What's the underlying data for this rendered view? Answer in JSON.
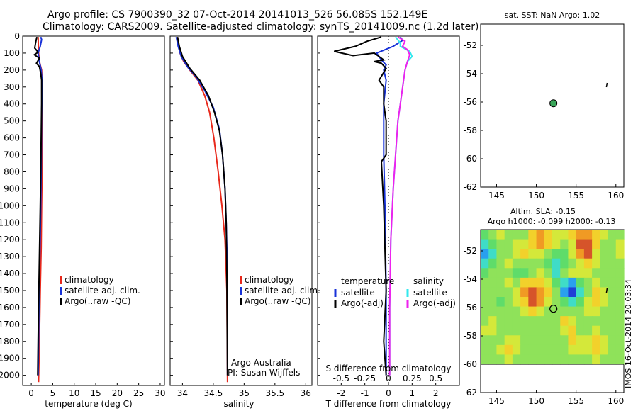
{
  "header": {
    "line1": "Argo profile: CS 7900390_32 07-Oct-2014 20141013_526 56.085S 152.149E",
    "line2": "Climatology: CARS2009. Satellite-adjusted climatology: synTS_20141009.nc (1.2d later)"
  },
  "colors": {
    "climatology": "#e8281b",
    "satellite": "#1832d8",
    "argo": "#000000",
    "sal_satellite": "#33e8ee",
    "sal_argo": "#ee22ee"
  },
  "chart_data": [
    {
      "id": "temperature",
      "type": "line",
      "xlabel": "temperature (deg C)",
      "ylabel": "",
      "xlim": [
        -2,
        31
      ],
      "ylim": [
        2060,
        0
      ],
      "x_ticks": [
        "0",
        "5",
        "10",
        "15",
        "20",
        "25",
        "30"
      ],
      "y_ticks": [
        "0",
        "100",
        "200",
        "300",
        "400",
        "500",
        "600",
        "700",
        "800",
        "900",
        "1000",
        "1100",
        "1200",
        "1300",
        "1400",
        "1500",
        "1600",
        "1700",
        "1800",
        "1900",
        "2000"
      ],
      "legend": [
        "climatology",
        "satellite-adj. clim.",
        "Argo(..raw -QC)"
      ],
      "series": [
        {
          "name": "climatology",
          "color": "#e8281b",
          "points": [
            [
              1.6,
              5
            ],
            [
              1.7,
              100
            ],
            [
              2.0,
              160
            ],
            [
              2.4,
              200
            ],
            [
              2.5,
              260
            ],
            [
              2.5,
              400
            ],
            [
              2.5,
              600
            ],
            [
              2.5,
              800
            ],
            [
              2.4,
              1000
            ],
            [
              2.3,
              1250
            ],
            [
              2.1,
              1500
            ],
            [
              1.9,
              1800
            ],
            [
              1.7,
              2040
            ]
          ]
        },
        {
          "name": "satellite-adj. clim.",
          "color": "#1832d8",
          "points": [
            [
              2.2,
              5
            ],
            [
              2.4,
              20
            ],
            [
              2.1,
              60
            ],
            [
              1.6,
              100
            ],
            [
              1.9,
              150
            ],
            [
              2.3,
              200
            ],
            [
              2.5,
              260
            ],
            [
              2.4,
              500
            ],
            [
              2.3,
              800
            ],
            [
              2.2,
              1000
            ],
            [
              2.0,
              1300
            ],
            [
              1.8,
              1600
            ],
            [
              1.6,
              2000
            ]
          ]
        },
        {
          "name": "Argo(..raw -QC)",
          "color": "#000000",
          "points": [
            [
              1.3,
              5
            ],
            [
              1.0,
              40
            ],
            [
              0.8,
              70
            ],
            [
              1.6,
              95
            ],
            [
              0.7,
              110
            ],
            [
              1.9,
              130
            ],
            [
              1.2,
              160
            ],
            [
              1.9,
              180
            ],
            [
              2.2,
              220
            ],
            [
              2.4,
              260
            ],
            [
              2.4,
              400
            ],
            [
              2.3,
              600
            ],
            [
              2.2,
              800
            ],
            [
              2.1,
              1000
            ],
            [
              1.9,
              1300
            ],
            [
              1.7,
              1600
            ],
            [
              1.5,
              2000
            ]
          ]
        }
      ]
    },
    {
      "id": "salinity",
      "type": "line",
      "xlabel": "salinity",
      "ylabel": "",
      "xlim": [
        33.8,
        36.1
      ],
      "ylim": [
        2060,
        0
      ],
      "x_ticks": [
        "34",
        "34.5",
        "35",
        "35.5",
        "36"
      ],
      "legend": [
        "climatology",
        "satellite-adj. clim.",
        "Argo(..raw -QC)"
      ],
      "annotations": [
        "Argo Australia",
        "PI: Susan Wijffels"
      ],
      "series": [
        {
          "name": "climatology",
          "color": "#e8281b",
          "points": [
            [
              33.92,
              5
            ],
            [
              33.96,
              100
            ],
            [
              34.02,
              150
            ],
            [
              34.12,
              200
            ],
            [
              34.25,
              260
            ],
            [
              34.36,
              350
            ],
            [
              34.44,
              450
            ],
            [
              34.51,
              600
            ],
            [
              34.58,
              800
            ],
            [
              34.64,
              1000
            ],
            [
              34.69,
              1200
            ],
            [
              34.72,
              1500
            ],
            [
              34.73,
              2040
            ]
          ]
        },
        {
          "name": "satellite-adj. clim.",
          "color": "#1832d8",
          "points": [
            [
              33.9,
              5
            ],
            [
              33.93,
              60
            ],
            [
              33.98,
              120
            ],
            [
              34.08,
              180
            ],
            [
              34.22,
              240
            ],
            [
              34.36,
              320
            ],
            [
              34.5,
              420
            ],
            [
              34.6,
              550
            ],
            [
              34.65,
              700
            ],
            [
              34.69,
              900
            ],
            [
              34.71,
              1100
            ],
            [
              34.73,
              1400
            ],
            [
              34.73,
              2000
            ]
          ]
        },
        {
          "name": "Argo(..raw -QC)",
          "color": "#000000",
          "points": [
            [
              33.92,
              5
            ],
            [
              33.95,
              60
            ],
            [
              34.0,
              120
            ],
            [
              34.12,
              190
            ],
            [
              34.28,
              260
            ],
            [
              34.42,
              350
            ],
            [
              34.52,
              450
            ],
            [
              34.6,
              560
            ],
            [
              34.65,
              700
            ],
            [
              34.69,
              900
            ],
            [
              34.71,
              1100
            ],
            [
              34.72,
              1400
            ],
            [
              34.73,
              2000
            ]
          ]
        }
      ]
    },
    {
      "id": "differences",
      "type": "line",
      "xlabel": "T difference from climatology",
      "xlabel_top": "S difference from climatology",
      "ylabel": "",
      "xlim": [
        -3,
        3
      ],
      "ylim": [
        2060,
        0
      ],
      "x_ticks_bottom": [
        "-2",
        "-1",
        "0",
        "1",
        "2"
      ],
      "x_ticks_top": [
        "-0.5",
        "-0.25",
        "0",
        "0.25",
        "0.5"
      ],
      "legend_titles": [
        "temperature",
        "salinity"
      ],
      "legend": [
        "satellite",
        "Argo(-adj)",
        "satellite",
        "Argo(-adj)"
      ],
      "series": [
        {
          "name": "temperature satellite",
          "color": "#1832d8",
          "points": [
            [
              0.5,
              5
            ],
            [
              0.6,
              25
            ],
            [
              0.2,
              60
            ],
            [
              -0.5,
              100
            ],
            [
              -0.3,
              140
            ],
            [
              -0.1,
              170
            ],
            [
              -0.2,
              200
            ],
            [
              -0.1,
              260
            ],
            [
              -0.2,
              400
            ],
            [
              -0.2,
              700
            ],
            [
              -0.15,
              1000
            ],
            [
              -0.1,
              1500
            ],
            [
              -0.1,
              2000
            ]
          ]
        },
        {
          "name": "temperature Argo(-adj)",
          "color": "#000000",
          "points": [
            [
              -0.3,
              5
            ],
            [
              -0.9,
              30
            ],
            [
              -1.4,
              60
            ],
            [
              -2.3,
              90
            ],
            [
              -1.5,
              115
            ],
            [
              -0.6,
              100
            ],
            [
              -0.2,
              140
            ],
            [
              -0.6,
              150
            ],
            [
              -0.3,
              160
            ],
            [
              -0.1,
              190
            ],
            [
              -0.4,
              260
            ],
            [
              -0.2,
              300
            ],
            [
              -0.2,
              400
            ],
            [
              -0.1,
              500
            ],
            [
              -0.1,
              700
            ],
            [
              -0.3,
              740
            ],
            [
              -0.2,
              1000
            ],
            [
              -0.1,
              1500
            ],
            [
              -0.2,
              1800
            ],
            [
              -0.1,
              2000
            ]
          ]
        },
        {
          "name": "salinity satellite",
          "color": "#33e8ee",
          "points": [
            [
              0.3,
              5
            ],
            [
              0.5,
              40
            ],
            [
              0.5,
              60
            ],
            [
              0.9,
              90
            ],
            [
              1.0,
              120
            ],
            [
              0.8,
              150
            ],
            [
              0.7,
              200
            ],
            [
              0.6,
              300
            ],
            [
              0.5,
              400
            ],
            [
              0.4,
              500
            ],
            [
              0.3,
              700
            ],
            [
              0.2,
              900
            ],
            [
              0.1,
              1200
            ],
            [
              0.05,
              1600
            ],
            [
              0.05,
              2000
            ]
          ]
        },
        {
          "name": "salinity Argo(-adj)",
          "color": "#ee22ee",
          "points": [
            [
              0.4,
              5
            ],
            [
              0.7,
              30
            ],
            [
              0.6,
              60
            ],
            [
              0.8,
              80
            ],
            [
              0.9,
              110
            ],
            [
              0.8,
              150
            ],
            [
              0.7,
              200
            ],
            [
              0.6,
              300
            ],
            [
              0.5,
              400
            ],
            [
              0.4,
              500
            ],
            [
              0.3,
              700
            ],
            [
              0.2,
              900
            ],
            [
              0.1,
              1200
            ],
            [
              0.05,
              1600
            ],
            [
              0.05,
              2000
            ]
          ]
        }
      ]
    },
    {
      "id": "sst-map",
      "type": "scatter",
      "title": "sat. SST: NaN Argo: 1.02",
      "xlim": [
        143,
        161
      ],
      "ylim": [
        -62,
        -50.5
      ],
      "x_ticks": [
        "145",
        "150",
        "155",
        "160"
      ],
      "y_ticks": [
        "-52",
        "-54",
        "-56",
        "-58",
        "-60",
        "-62"
      ],
      "float": [
        152.149,
        -56.085
      ],
      "float_color": "#3aa65a",
      "track_marks": [
        [
          158.9,
          -54.8
        ]
      ]
    },
    {
      "id": "sla-map",
      "type": "heatmap",
      "title_line1": "Altim. SLA: -0.15",
      "title_line2": "Argo h1000: -0.099 h2000: -0.13",
      "credit": "IMOS 16-Oct-2014 20:03:34",
      "xlim": [
        143,
        161
      ],
      "ylim": [
        -62,
        -50.5
      ],
      "x_ticks": [
        "145",
        "150",
        "155",
        "160"
      ],
      "y_ticks": [
        "-52",
        "-54",
        "-56",
        "-58",
        "-60",
        "-62"
      ],
      "float": [
        152.149,
        -56.085
      ],
      "track_marks": [
        [
          158.9,
          -54.8
        ]
      ],
      "colorscale": [
        "#1f3fd6",
        "#2aa0ee",
        "#3fdcc7",
        "#5fdc6a",
        "#8fe25a",
        "#d4e83a",
        "#f2d12b",
        "#f09a24",
        "#d6542a"
      ],
      "grid": [
        [
          3,
          4,
          5,
          4,
          4,
          4,
          6,
          7,
          6,
          5,
          5,
          6,
          7,
          7,
          6,
          5,
          4,
          4
        ],
        [
          2,
          3,
          4,
          4,
          5,
          5,
          6,
          7,
          6,
          5,
          4,
          5,
          8,
          8,
          6,
          4,
          4,
          5
        ],
        [
          1,
          2,
          4,
          4,
          5,
          6,
          5,
          5,
          4,
          3,
          3,
          5,
          7,
          8,
          5,
          4,
          4,
          5
        ],
        [
          2,
          3,
          4,
          5,
          4,
          4,
          4,
          4,
          3,
          2,
          3,
          4,
          5,
          6,
          5,
          4,
          4,
          4
        ],
        [
          3,
          4,
          4,
          4,
          3,
          3,
          4,
          5,
          4,
          2,
          4,
          5,
          5,
          5,
          4,
          4,
          4,
          4
        ],
        [
          4,
          4,
          4,
          5,
          4,
          6,
          6,
          6,
          5,
          3,
          2,
          1,
          3,
          4,
          5,
          4,
          4,
          4
        ],
        [
          4,
          4,
          4,
          4,
          5,
          7,
          8,
          7,
          6,
          4,
          1,
          0,
          2,
          4,
          6,
          5,
          4,
          4
        ],
        [
          4,
          4,
          3,
          4,
          5,
          6,
          8,
          7,
          5,
          4,
          3,
          2,
          3,
          5,
          6,
          5,
          4,
          4
        ],
        [
          4,
          4,
          4,
          4,
          4,
          5,
          6,
          5,
          4,
          4,
          4,
          4,
          4,
          5,
          5,
          4,
          4,
          4
        ],
        [
          4,
          5,
          4,
          4,
          4,
          4,
          4,
          4,
          4,
          4,
          6,
          5,
          4,
          4,
          4,
          4,
          4,
          4
        ],
        [
          5,
          5,
          4,
          4,
          4,
          4,
          4,
          4,
          4,
          4,
          5,
          6,
          4,
          4,
          5,
          4,
          4,
          4
        ],
        [
          4,
          4,
          4,
          5,
          5,
          4,
          4,
          4,
          4,
          4,
          4,
          6,
          5,
          5,
          6,
          5,
          4,
          4
        ],
        [
          4,
          4,
          5,
          6,
          5,
          4,
          4,
          4,
          4,
          4,
          4,
          5,
          5,
          5,
          6,
          5,
          4,
          4
        ],
        [
          4,
          4,
          4,
          5,
          4,
          4,
          4,
          4,
          4,
          4,
          4,
          4,
          4,
          4,
          5,
          4,
          4,
          4
        ]
      ]
    }
  ]
}
